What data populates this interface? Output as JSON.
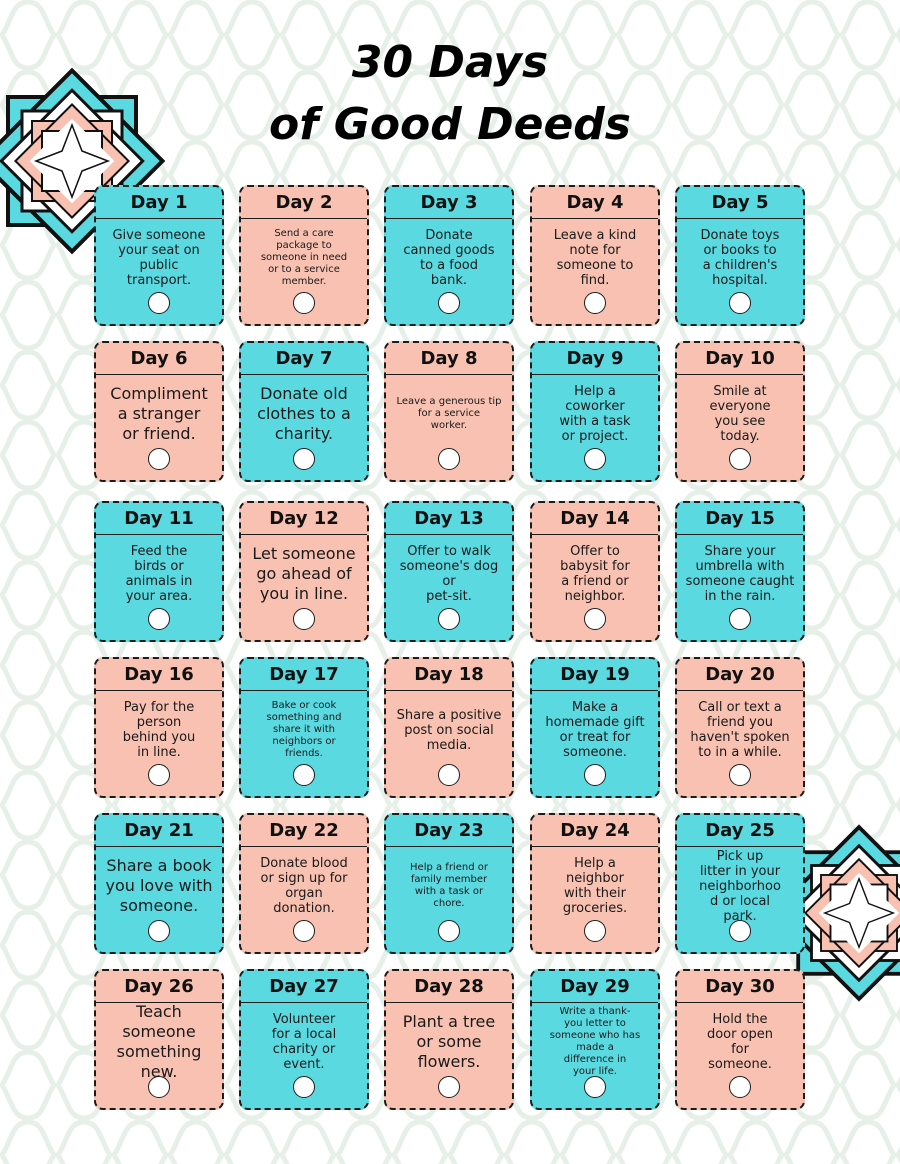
{
  "title": {
    "line1": "30 Days",
    "line2": "of Good Deeds"
  },
  "colors": {
    "teal": "#5ad9e1",
    "pink": "#f8c1b1",
    "outline": "#1c1c1c",
    "pattern": "#e6efe8"
  },
  "decorations": [
    "eight-point-star-icon",
    "eight-point-star-icon"
  ],
  "cards": [
    {
      "day": "Day 1",
      "text": "Give someone\nyour seat on\npublic\ntransport.",
      "color": "teal",
      "size": "m"
    },
    {
      "day": "Day 2",
      "text": "Send a care\npackage to\nsomeone in need\nor to a service\nmember.",
      "color": "pink",
      "size": "s"
    },
    {
      "day": "Day 3",
      "text": "Donate\ncanned goods\nto a food\nbank.",
      "color": "teal",
      "size": "m"
    },
    {
      "day": "Day 4",
      "text": "Leave a kind\nnote for\nsomeone to\nfind.",
      "color": "pink",
      "size": "m"
    },
    {
      "day": "Day 5",
      "text": "Donate toys\nor books to\na children's\nhospital.",
      "color": "teal",
      "size": "m"
    },
    {
      "day": "Day 6",
      "text": "Compliment\na stranger\nor friend.",
      "color": "pink",
      "size": "l"
    },
    {
      "day": "Day 7",
      "text": "Donate old\nclothes to a\ncharity.",
      "color": "teal",
      "size": "l"
    },
    {
      "day": "Day 8",
      "text": "Leave a generous tip\nfor a service\nworker.",
      "color": "pink",
      "size": "s"
    },
    {
      "day": "Day 9",
      "text": "Help a\ncoworker\nwith a task\nor project.",
      "color": "teal",
      "size": "m"
    },
    {
      "day": "Day 10",
      "text": "Smile at\neveryone\nyou see\ntoday.",
      "color": "pink",
      "size": "m"
    },
    {
      "day": "Day 11",
      "text": "Feed the\nbirds or\nanimals in\nyour area.",
      "color": "teal",
      "size": "m"
    },
    {
      "day": "Day 12",
      "text": "Let someone\ngo ahead of\nyou in line.",
      "color": "pink",
      "size": "l"
    },
    {
      "day": "Day 13",
      "text": "Offer to walk\nsomeone's dog or\npet-sit.",
      "color": "teal",
      "size": "m"
    },
    {
      "day": "Day 14",
      "text": "Offer to\nbabysit for\na friend or\nneighbor.",
      "color": "pink",
      "size": "m"
    },
    {
      "day": "Day 15",
      "text": "Share your\numbrella with\nsomeone caught\nin the rain.",
      "color": "teal",
      "size": "m"
    },
    {
      "day": "Day 16",
      "text": "Pay for the\nperson\nbehind you\nin line.",
      "color": "pink",
      "size": "m"
    },
    {
      "day": "Day 17",
      "text": "Bake or cook\nsomething and\nshare it with\nneighbors or\nfriends.",
      "color": "teal",
      "size": "s"
    },
    {
      "day": "Day 18",
      "text": "Share a positive\npost on social\nmedia.",
      "color": "pink",
      "size": "m"
    },
    {
      "day": "Day 19",
      "text": "Make a\nhomemade gift\nor treat for\nsomeone.",
      "color": "teal",
      "size": "m"
    },
    {
      "day": "Day 20",
      "text": "Call or text a\nfriend you\nhaven't spoken\nto in a while.",
      "color": "pink",
      "size": "m"
    },
    {
      "day": "Day 21",
      "text": "Share a book\nyou love with\nsomeone.",
      "color": "teal",
      "size": "l"
    },
    {
      "day": "Day 22",
      "text": "Donate blood\nor sign up for\norgan\ndonation.",
      "color": "pink",
      "size": "m"
    },
    {
      "day": "Day 23",
      "text": "Help a friend or\nfamily member\nwith a task or\nchore.",
      "color": "teal",
      "size": "s"
    },
    {
      "day": "Day 24",
      "text": "Help a\nneighbor\nwith their\ngroceries.",
      "color": "pink",
      "size": "m"
    },
    {
      "day": "Day 25",
      "text": "Pick up\nlitter in your\nneighborhoo\nd or local\npark.",
      "color": "teal",
      "size": "m"
    },
    {
      "day": "Day 26",
      "text": "Teach\nsomeone\nsomething\nnew.",
      "color": "pink",
      "size": "l"
    },
    {
      "day": "Day 27",
      "text": "Volunteer\nfor a local\ncharity or\nevent.",
      "color": "teal",
      "size": "m"
    },
    {
      "day": "Day 28",
      "text": "Plant a tree\nor some\nflowers.",
      "color": "pink",
      "size": "l"
    },
    {
      "day": "Day 29",
      "text": "Write a thank-\nyou letter to\nsomeone who has\nmade a\ndifference in\nyour life.",
      "color": "teal",
      "size": "s"
    },
    {
      "day": "Day 30",
      "text": "Hold the\ndoor open\nfor\nsomeone.",
      "color": "pink",
      "size": "m"
    }
  ]
}
